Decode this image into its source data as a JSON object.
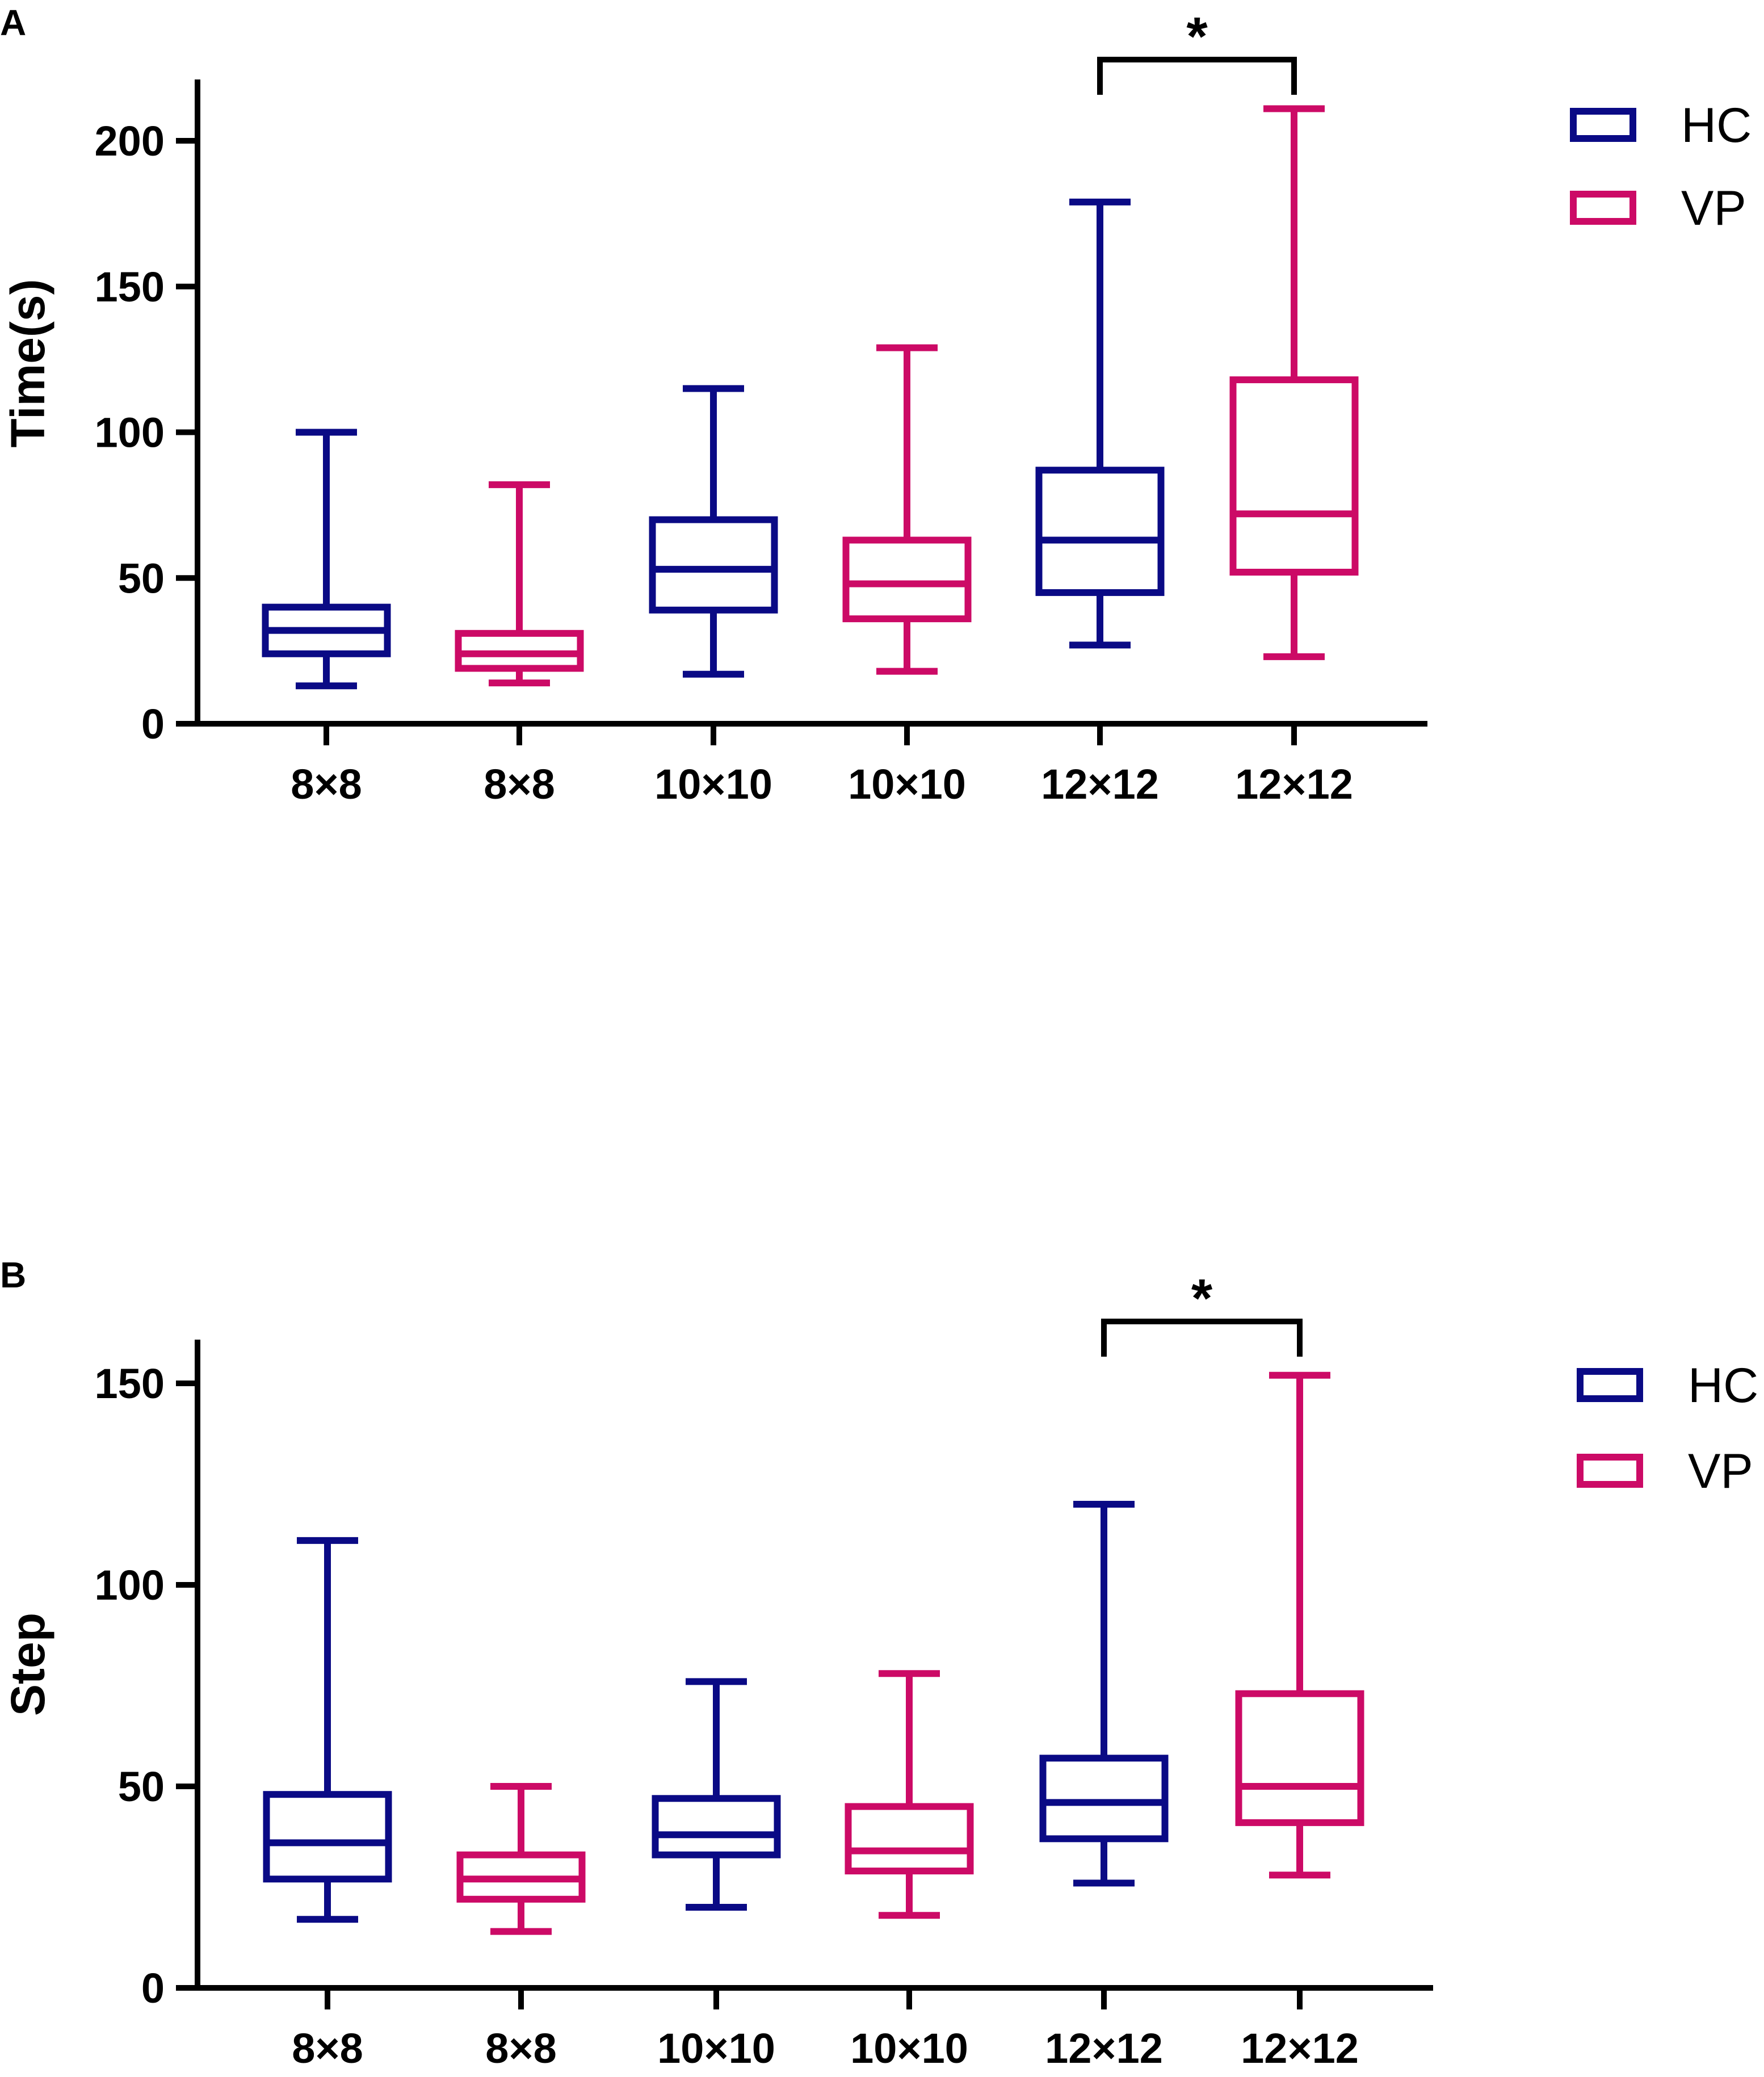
{
  "colors": {
    "HC": "#0a0a85",
    "VP": "#cc0a66",
    "axis": "#000000"
  },
  "chart_data": [
    {
      "panel": "A",
      "type": "box",
      "ylabel": "Time(s)",
      "ylim": [
        0,
        220
      ],
      "yticks": [
        0,
        50,
        100,
        150,
        200
      ],
      "categories": [
        "8×8",
        "8×8",
        "10×10",
        "10×10",
        "12×12",
        "12×12"
      ],
      "groups": [
        "HC",
        "VP",
        "HC",
        "VP",
        "HC",
        "VP"
      ],
      "boxes": [
        {
          "min": 13,
          "q1": 24,
          "median": 32,
          "q3": 40,
          "max": 100
        },
        {
          "min": 14,
          "q1": 19,
          "median": 24,
          "q3": 31,
          "max": 82
        },
        {
          "min": 17,
          "q1": 39,
          "median": 53,
          "q3": 70,
          "max": 115
        },
        {
          "min": 18,
          "q1": 36,
          "median": 48,
          "q3": 63,
          "max": 129
        },
        {
          "min": 27,
          "q1": 45,
          "median": 63,
          "q3": 87,
          "max": 179
        },
        {
          "min": 23,
          "q1": 52,
          "median": 72,
          "q3": 118,
          "max": 211
        }
      ],
      "significance": {
        "between": [
          4,
          5
        ],
        "label": "*"
      },
      "legend": [
        {
          "name": "HC"
        },
        {
          "name": "VP"
        }
      ]
    },
    {
      "panel": "B",
      "type": "box",
      "ylabel": "Step",
      "ylim": [
        0,
        160
      ],
      "yticks": [
        0,
        50,
        100,
        150
      ],
      "categories": [
        "8×8",
        "8×8",
        "10×10",
        "10×10",
        "12×12",
        "12×12"
      ],
      "groups": [
        "HC",
        "VP",
        "HC",
        "VP",
        "HC",
        "VP"
      ],
      "boxes": [
        {
          "min": 17,
          "q1": 27,
          "median": 36,
          "q3": 48,
          "max": 111
        },
        {
          "min": 14,
          "q1": 22,
          "median": 27,
          "q3": 33,
          "max": 50
        },
        {
          "min": 20,
          "q1": 33,
          "median": 38,
          "q3": 47,
          "max": 76
        },
        {
          "min": 18,
          "q1": 29,
          "median": 34,
          "q3": 45,
          "max": 78
        },
        {
          "min": 26,
          "q1": 37,
          "median": 46,
          "q3": 57,
          "max": 120
        },
        {
          "min": 28,
          "q1": 41,
          "median": 50,
          "q3": 73,
          "max": 152
        }
      ],
      "significance": {
        "between": [
          4,
          5
        ],
        "label": "*"
      },
      "legend": [
        {
          "name": "HC"
        },
        {
          "name": "VP"
        }
      ]
    }
  ]
}
